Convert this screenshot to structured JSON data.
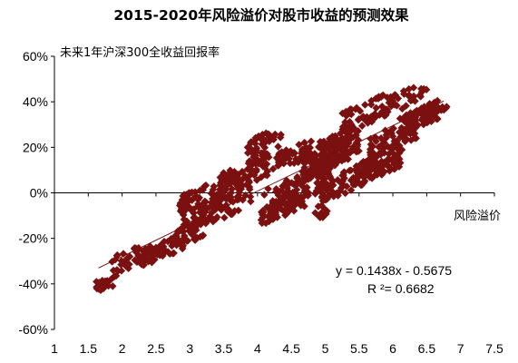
{
  "chart_data": {
    "type": "scatter",
    "title": "2015-2020年风险溢价对股市收益的预测效果",
    "ylabel": "未来1年沪深300全收益回报率",
    "xlabel": "风险溢价",
    "xlim": [
      1,
      7.5
    ],
    "ylim": [
      -0.6,
      0.6
    ],
    "x_ticks": [
      "1",
      "1.5",
      "2",
      "2.5",
      "3",
      "3.5",
      "4",
      "4.5",
      "5",
      "5.5",
      "6",
      "6.5",
      "7",
      "7.5"
    ],
    "y_ticks": [
      "60%",
      "40%",
      "20%",
      "0%",
      "-20%",
      "-40%",
      "-60%"
    ],
    "marker_color": "#7b1010",
    "trendline": {
      "slope": 0.1438,
      "intercept": -0.5675,
      "equation": "y = 0.1438x - 0.5675",
      "r_squared": "R ²= 0.6682"
    },
    "series": [
      {
        "clusters": [
          [
            1.75,
            -0.4,
            0.15,
            0.03,
            20
          ],
          [
            2.1,
            -0.3,
            0.25,
            0.05,
            40
          ],
          [
            2.6,
            -0.25,
            0.3,
            0.04,
            60
          ],
          [
            3.0,
            -0.18,
            0.2,
            0.04,
            45
          ],
          [
            3.1,
            -0.12,
            0.2,
            0.04,
            35
          ],
          [
            3.3,
            0.0,
            0.45,
            0.05,
            80
          ],
          [
            3.8,
            0.08,
            0.35,
            0.05,
            60
          ],
          [
            3.6,
            -0.05,
            0.3,
            0.05,
            50
          ],
          [
            4.1,
            0.2,
            0.25,
            0.06,
            50
          ],
          [
            4.5,
            0.16,
            0.3,
            0.04,
            45
          ],
          [
            4.6,
            0.02,
            0.5,
            0.06,
            100
          ],
          [
            4.4,
            -0.06,
            0.35,
            0.04,
            60
          ],
          [
            5.0,
            0.15,
            0.35,
            0.06,
            130
          ],
          [
            5.2,
            0.2,
            0.3,
            0.06,
            80
          ],
          [
            5.4,
            0.06,
            0.45,
            0.05,
            80
          ],
          [
            5.8,
            0.12,
            0.35,
            0.05,
            80
          ],
          [
            6.0,
            0.24,
            0.35,
            0.05,
            60
          ],
          [
            5.6,
            0.35,
            0.35,
            0.05,
            60
          ],
          [
            6.4,
            0.33,
            0.3,
            0.04,
            60
          ],
          [
            6.25,
            0.42,
            0.3,
            0.04,
            30
          ],
          [
            6.6,
            0.37,
            0.2,
            0.03,
            25
          ],
          [
            4.95,
            -0.08,
            0.1,
            0.03,
            10
          ]
        ]
      }
    ]
  }
}
